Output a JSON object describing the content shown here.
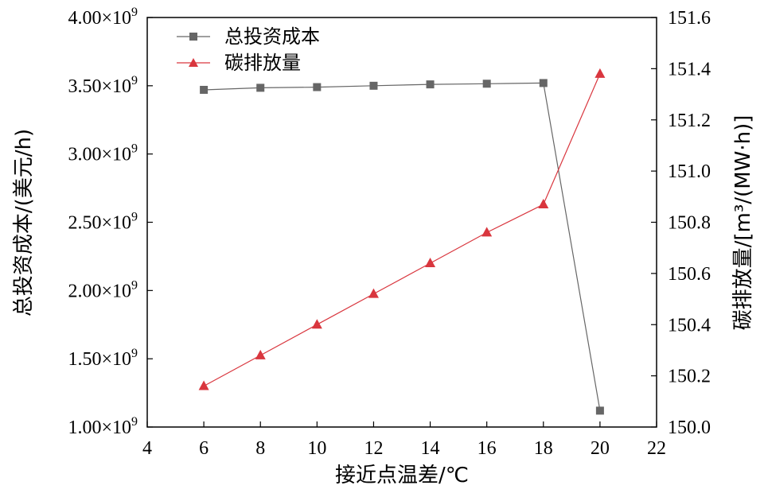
{
  "chart_data": {
    "type": "line",
    "xlabel": "接近点温差/℃",
    "ylabel_left": "总投资成本/(美元/h)",
    "ylabel_right": "碳排放量/[m³/(MW·h)]",
    "xlim": [
      4,
      22
    ],
    "ylim_left": [
      1000000000.0,
      4000000000.0
    ],
    "ylim_right": [
      150.0,
      151.6
    ],
    "x_ticks": [
      "4",
      "6",
      "8",
      "10",
      "12",
      "14",
      "16",
      "18",
      "20",
      "22"
    ],
    "y_left_ticks": [
      "1.00×10⁹",
      "1.50×10⁹",
      "2.00×10⁹",
      "2.50×10⁹",
      "3.00×10⁹",
      "3.50×10⁹",
      "4.00×10⁹"
    ],
    "y_right_ticks": [
      "150.0",
      "150.2",
      "150.4",
      "150.6",
      "150.8",
      "151.0",
      "151.2",
      "151.4",
      "151.6"
    ],
    "grid": false,
    "legend_position": "top-left",
    "series": [
      {
        "name": "总投资成本",
        "axis": "left",
        "color": "#666666",
        "marker": "square",
        "x": [
          6,
          8,
          10,
          12,
          14,
          16,
          18,
          20
        ],
        "values": [
          3470000000.0,
          3485000000.0,
          3490000000.0,
          3500000000.0,
          3510000000.0,
          3515000000.0,
          3520000000.0,
          1120000000.0
        ]
      },
      {
        "name": "碳排放量",
        "axis": "right",
        "color": "#d9363e",
        "marker": "triangle",
        "x": [
          6,
          8,
          10,
          12,
          14,
          16,
          18,
          20
        ],
        "values": [
          150.16,
          150.28,
          150.4,
          150.52,
          150.64,
          150.76,
          150.87,
          151.38
        ]
      }
    ]
  }
}
